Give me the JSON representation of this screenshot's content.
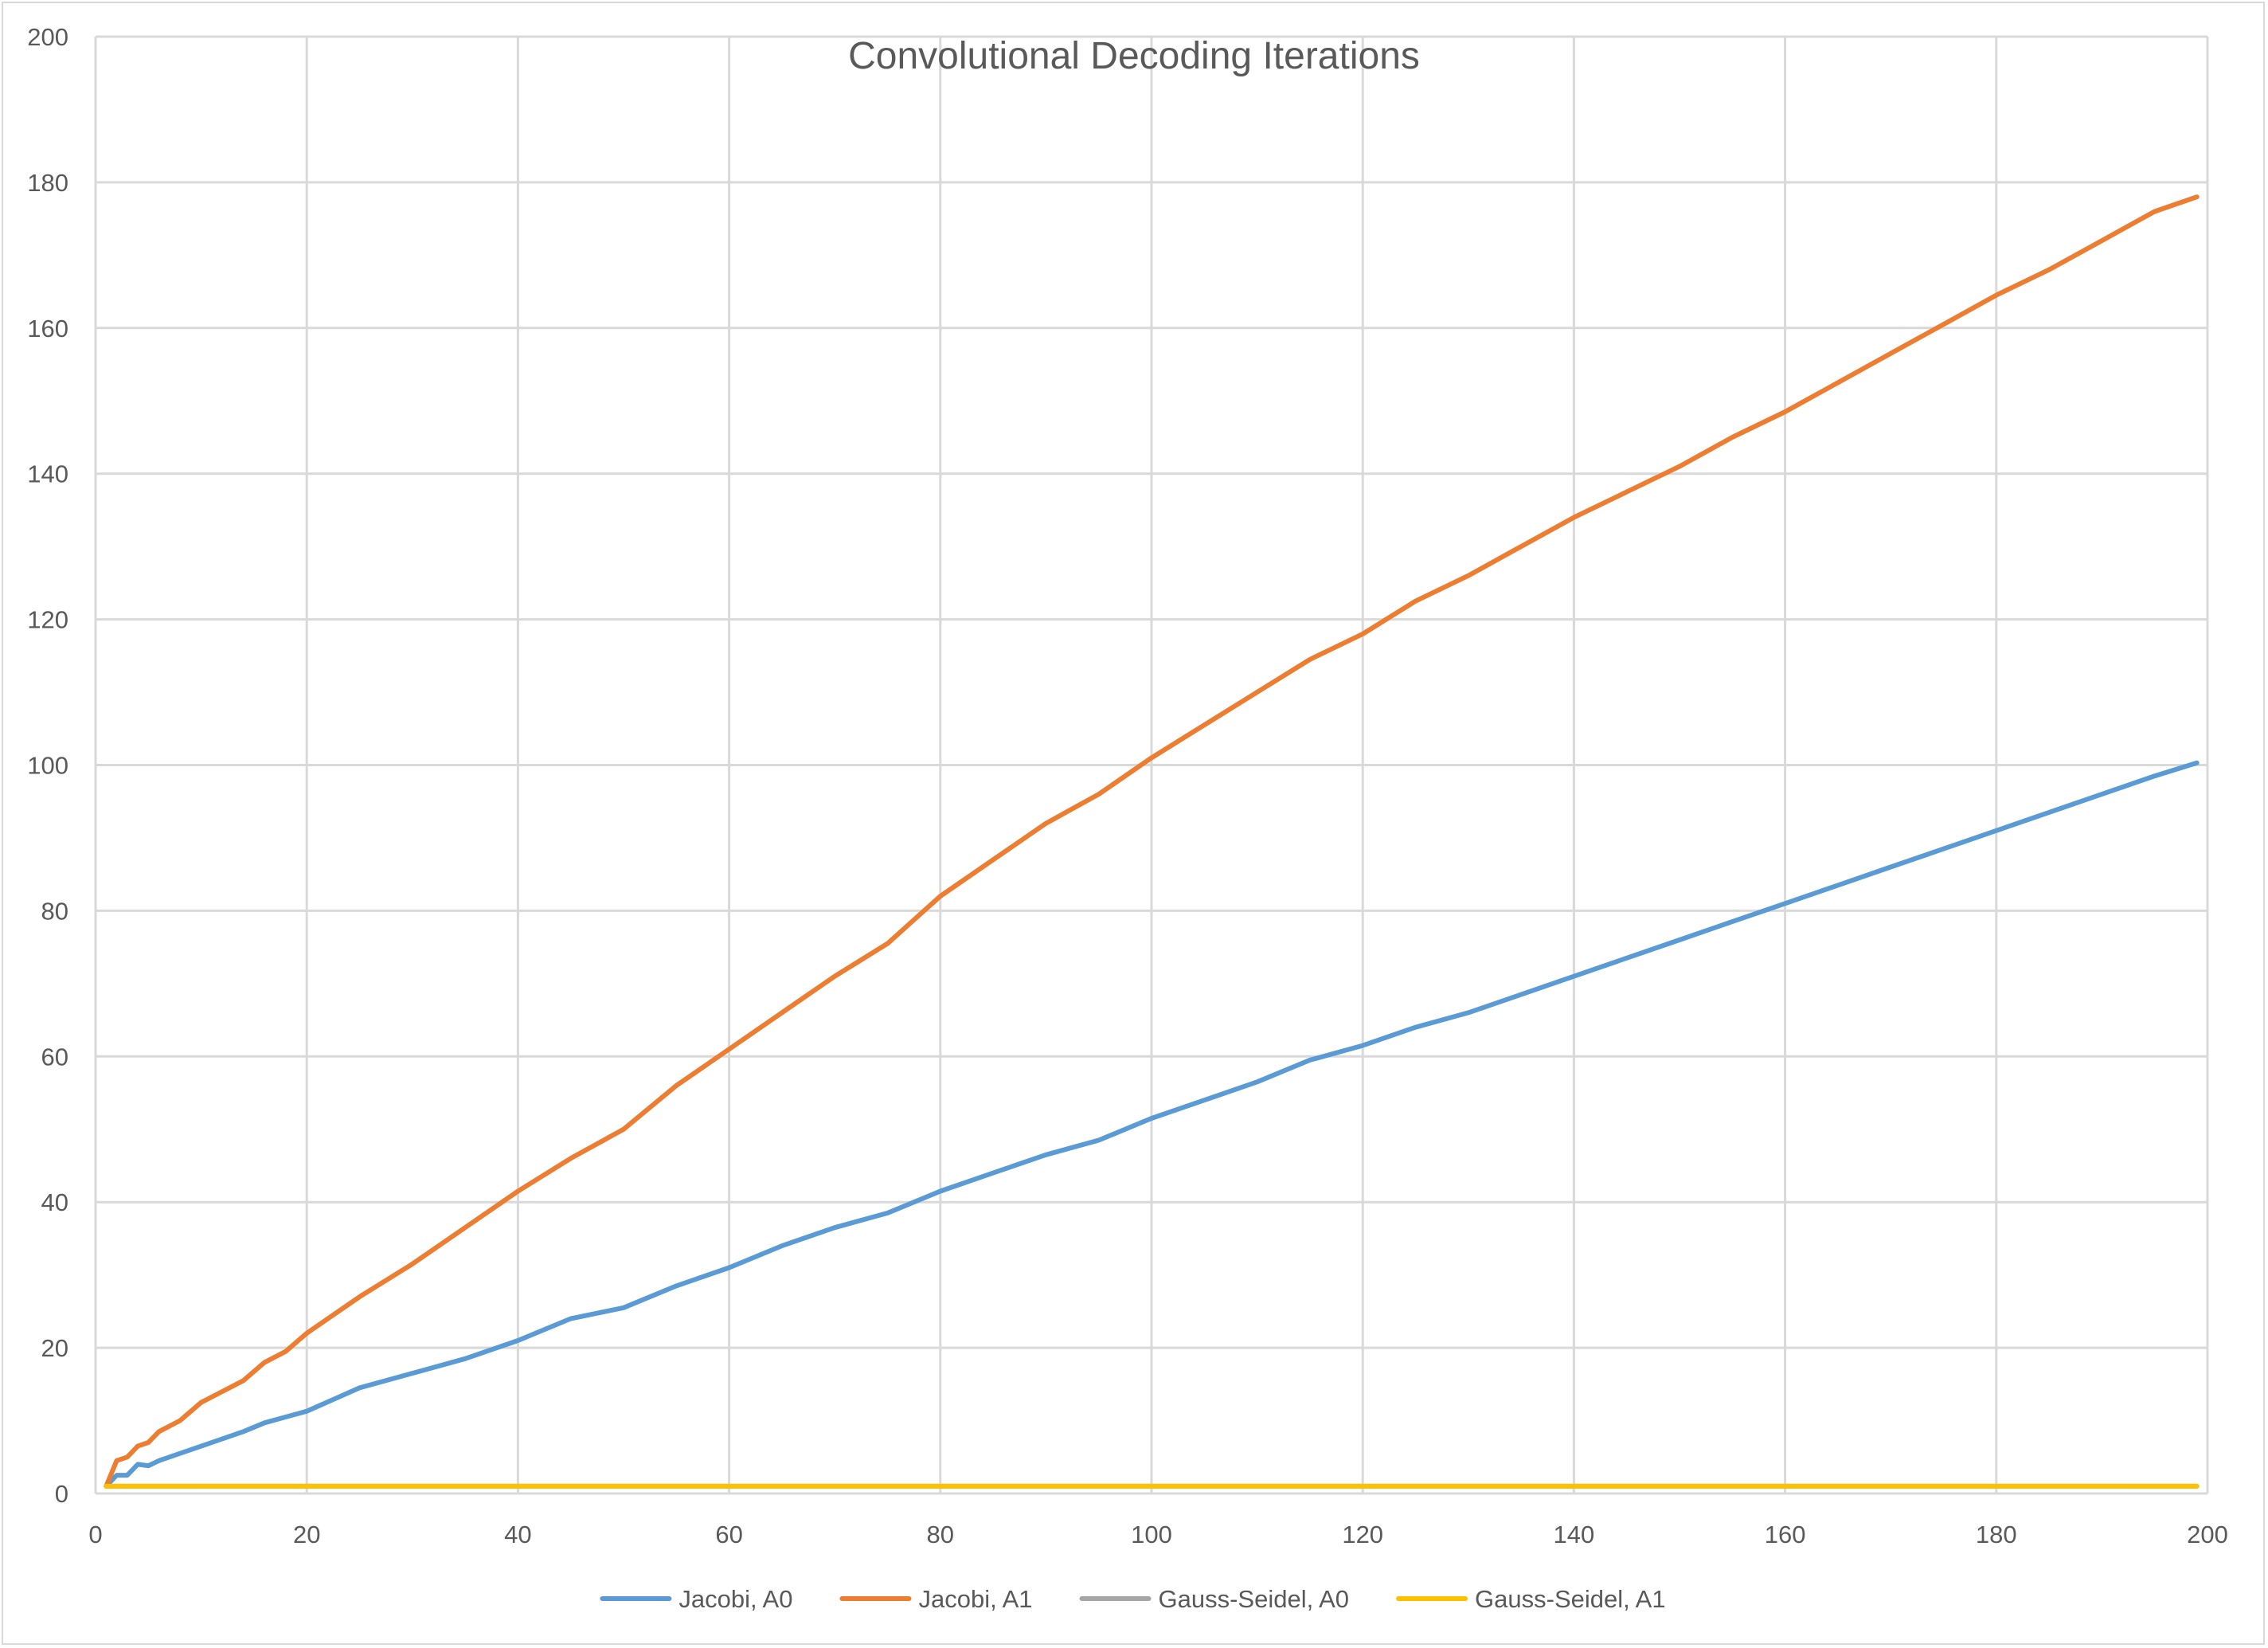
{
  "chart_data": {
    "type": "line",
    "title": "Convolutional Decoding Iterations",
    "xlabel": "",
    "ylabel": "",
    "xlim": [
      0,
      200
    ],
    "ylim": [
      0,
      200
    ],
    "xticks": [
      0,
      20,
      40,
      60,
      80,
      100,
      120,
      140,
      160,
      180,
      200
    ],
    "yticks": [
      0,
      20,
      40,
      60,
      80,
      100,
      120,
      140,
      160,
      180,
      200
    ],
    "grid": true,
    "legend_position": "bottom",
    "x": [
      1,
      2,
      3,
      4,
      5,
      6,
      8,
      10,
      12,
      14,
      16,
      18,
      20,
      25,
      30,
      35,
      40,
      45,
      50,
      55,
      60,
      65,
      70,
      75,
      80,
      85,
      90,
      95,
      100,
      105,
      110,
      115,
      120,
      125,
      130,
      135,
      140,
      145,
      150,
      155,
      160,
      165,
      170,
      175,
      180,
      185,
      190,
      195,
      199
    ],
    "series": [
      {
        "name": "Jacobi, A0",
        "color": "#5b9bd5",
        "values": [
          1,
          2.5,
          2.5,
          4,
          3.8,
          4.5,
          5.5,
          6.5,
          7.5,
          8.5,
          9.7,
          10.5,
          11.3,
          14.5,
          16.5,
          18.5,
          21,
          24,
          25.5,
          28.5,
          31,
          34,
          36.5,
          38.5,
          41.5,
          44,
          46.5,
          48.5,
          51.5,
          54,
          56.5,
          59.5,
          61.5,
          64,
          66,
          68.5,
          71,
          73.5,
          76,
          78.5,
          81,
          83.5,
          86,
          88.5,
          91,
          93.5,
          96,
          98.5,
          100.3
        ]
      },
      {
        "name": "Jacobi, A1",
        "color": "#ed7d31",
        "values": [
          1,
          4.5,
          5,
          6.5,
          7,
          8.5,
          10,
          12.5,
          14,
          15.5,
          18,
          19.5,
          22,
          27,
          31.5,
          36.5,
          41.5,
          46,
          50,
          56,
          61,
          66,
          71,
          75.5,
          82,
          87,
          92,
          96,
          101,
          105.5,
          110,
          114.5,
          118,
          122.5,
          126,
          130,
          134,
          137.5,
          141,
          145,
          148.5,
          152.5,
          156.5,
          160.5,
          164.5,
          168,
          172,
          176,
          178
        ]
      },
      {
        "name": "Gauss-Seidel, A0",
        "color": "#a5a5a5",
        "values": [
          1,
          1,
          1,
          1,
          1,
          1,
          1,
          1,
          1,
          1,
          1,
          1,
          1,
          1,
          1,
          1,
          1,
          1,
          1,
          1,
          1,
          1,
          1,
          1,
          1,
          1,
          1,
          1,
          1,
          1,
          1,
          1,
          1,
          1,
          1,
          1,
          1,
          1,
          1,
          1,
          1,
          1,
          1,
          1,
          1,
          1,
          1,
          1,
          1
        ]
      },
      {
        "name": "Gauss-Seidel, A1",
        "color": "#ffc000",
        "values": [
          1,
          1,
          1,
          1,
          1,
          1,
          1,
          1,
          1,
          1,
          1,
          1,
          1,
          1,
          1,
          1,
          1,
          1,
          1,
          1,
          1,
          1,
          1,
          1,
          1,
          1,
          1,
          1,
          1,
          1,
          1,
          1,
          1,
          1,
          1,
          1,
          1,
          1,
          1,
          1,
          1,
          1,
          1,
          1,
          1,
          1,
          1,
          1,
          1
        ]
      }
    ]
  },
  "style": {
    "grid_color": "#d9d9d9",
    "text_color": "#595959",
    "border_color": "#d9d9d9"
  }
}
